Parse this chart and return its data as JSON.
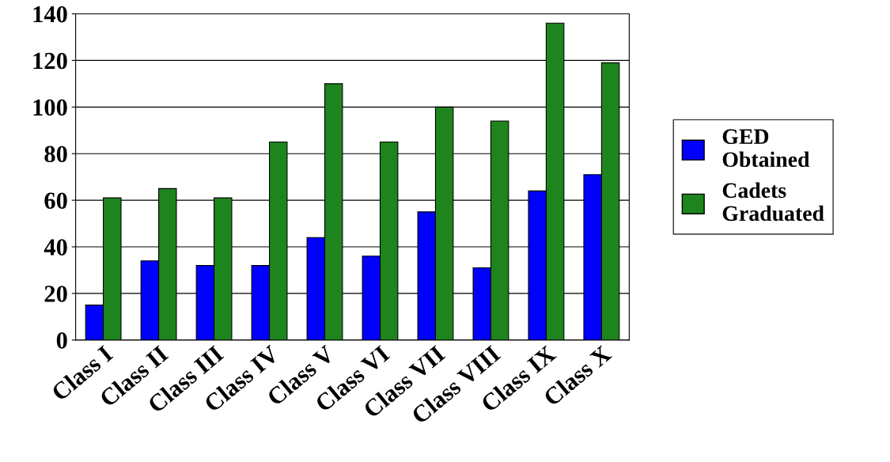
{
  "chart_data": {
    "type": "bar",
    "categories": [
      "Class I",
      "Class II",
      "Class III",
      "Class IV",
      "Class V",
      "Class VI",
      "Class VII",
      "Class VIII",
      "Class IX",
      "Class X"
    ],
    "series": [
      {
        "name": "GED Obtained",
        "color": "#0000ff",
        "values": [
          15,
          34,
          32,
          32,
          44,
          36,
          55,
          31,
          64,
          71
        ]
      },
      {
        "name": "Cadets Graduated",
        "color": "#1e841e",
        "values": [
          61,
          65,
          61,
          85,
          110,
          85,
          100,
          94,
          136,
          119
        ]
      }
    ],
    "ylim": [
      0,
      140
    ],
    "yticks": [
      0,
      20,
      40,
      60,
      80,
      100,
      120,
      140
    ],
    "grid": "y",
    "legend": "right"
  }
}
